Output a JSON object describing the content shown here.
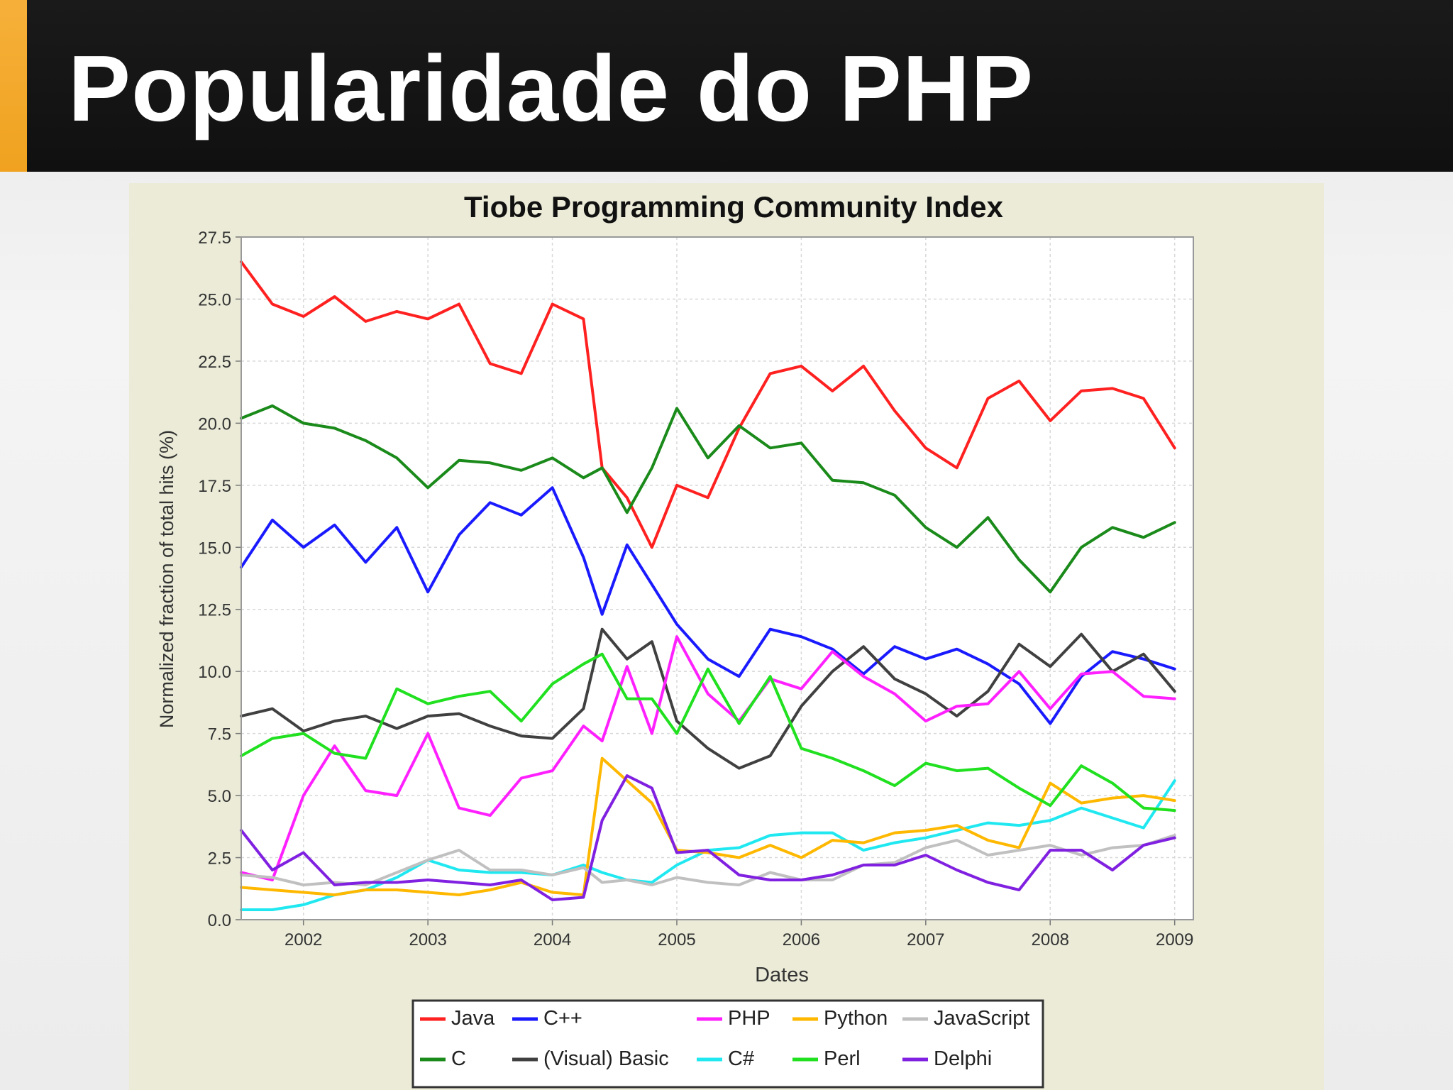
{
  "slide": {
    "title": "Popularidade do PHP"
  },
  "colors": {
    "header_bg": "#121212",
    "accent": "#f2a52a",
    "chart_bg": "#ebebd8",
    "plot_bg": "#ffffff"
  },
  "chart_data": {
    "type": "line",
    "title": "Tiobe Programming Community Index",
    "xlabel": "Dates",
    "ylabel": "Normalized fraction of total hits (%)",
    "xlim": [
      2001.5,
      2009.15
    ],
    "ylim": [
      0,
      27.5
    ],
    "x_ticks": [
      "2002",
      "2003",
      "2004",
      "2005",
      "2006",
      "2007",
      "2008",
      "2009"
    ],
    "y_ticks": [
      "0.0",
      "2.5",
      "5.0",
      "7.5",
      "10.0",
      "12.5",
      "15.0",
      "17.5",
      "20.0",
      "22.5",
      "25.0",
      "27.5"
    ],
    "grid": true,
    "legend_position": "bottom",
    "x": [
      2001.5,
      2001.75,
      2002.0,
      2002.25,
      2002.5,
      2002.75,
      2003.0,
      2003.25,
      2003.5,
      2003.75,
      2004.0,
      2004.25,
      2004.4,
      2004.6,
      2004.8,
      2005.0,
      2005.25,
      2005.5,
      2005.75,
      2006.0,
      2006.25,
      2006.5,
      2006.75,
      2007.0,
      2007.25,
      2007.5,
      2007.75,
      2008.0,
      2008.25,
      2008.5,
      2008.75,
      2009.0
    ],
    "series": [
      {
        "name": "Java",
        "color": "#ff2020",
        "values": [
          26.5,
          24.8,
          24.3,
          25.1,
          24.1,
          24.5,
          24.2,
          24.8,
          22.4,
          22.0,
          24.8,
          24.2,
          18.2,
          17.0,
          15.0,
          17.5,
          17.0,
          19.8,
          22.0,
          22.3,
          21.3,
          22.3,
          20.5,
          19.0,
          18.2,
          21.0,
          21.7,
          20.1,
          21.3,
          21.4,
          21.0,
          19.0
        ]
      },
      {
        "name": "C",
        "color": "#1a8a1a",
        "values": [
          20.2,
          20.7,
          20.0,
          19.8,
          19.3,
          18.6,
          17.4,
          18.5,
          18.4,
          18.1,
          18.6,
          17.8,
          18.2,
          16.4,
          18.2,
          20.6,
          18.6,
          19.9,
          19.0,
          19.2,
          17.7,
          17.6,
          17.1,
          15.8,
          15.0,
          16.2,
          14.5,
          13.2,
          15.0,
          15.8,
          15.4,
          16.0
        ]
      },
      {
        "name": "C++",
        "color": "#1a1aff",
        "values": [
          14.2,
          16.1,
          15.0,
          15.9,
          14.4,
          15.8,
          13.2,
          15.5,
          16.8,
          16.3,
          17.4,
          14.6,
          12.3,
          15.1,
          13.5,
          11.9,
          10.5,
          9.8,
          11.7,
          11.4,
          10.9,
          9.9,
          11.0,
          10.5,
          10.9,
          10.3,
          9.5,
          7.9,
          9.8,
          10.8,
          10.5,
          10.1
        ]
      },
      {
        "name": "(Visual) Basic",
        "color": "#404040",
        "values": [
          8.2,
          8.5,
          7.6,
          8.0,
          8.2,
          7.7,
          8.2,
          8.3,
          7.8,
          7.4,
          7.3,
          8.5,
          11.7,
          10.5,
          11.2,
          8.0,
          6.9,
          6.1,
          6.6,
          8.6,
          10.0,
          11.0,
          9.7,
          9.1,
          8.2,
          9.2,
          11.1,
          10.2,
          11.5,
          10.0,
          10.7,
          9.2
        ]
      },
      {
        "name": "PHP",
        "color": "#ff20ff",
        "values": [
          1.9,
          1.6,
          5.0,
          7.0,
          5.2,
          5.0,
          7.5,
          4.5,
          4.2,
          5.7,
          6.0,
          7.8,
          7.2,
          10.2,
          7.5,
          11.4,
          9.1,
          8.0,
          9.7,
          9.3,
          10.8,
          9.8,
          9.1,
          8.0,
          8.6,
          8.7,
          10.0,
          8.5,
          9.9,
          10.0,
          9.0,
          8.9
        ]
      },
      {
        "name": "C#",
        "color": "#20e8f0",
        "values": [
          0.4,
          0.4,
          0.6,
          1.0,
          1.2,
          1.7,
          2.4,
          2.0,
          1.9,
          1.9,
          1.8,
          2.2,
          1.9,
          1.6,
          1.5,
          2.2,
          2.8,
          2.9,
          3.4,
          3.5,
          3.5,
          2.8,
          3.1,
          3.3,
          3.6,
          3.9,
          3.8,
          4.0,
          4.5,
          4.1,
          3.7,
          5.6
        ]
      },
      {
        "name": "Python",
        "color": "#ffb800",
        "values": [
          1.3,
          1.2,
          1.1,
          1.0,
          1.2,
          1.2,
          1.1,
          1.0,
          1.2,
          1.5,
          1.1,
          1.0,
          6.5,
          5.6,
          4.7,
          2.8,
          2.7,
          2.5,
          3.0,
          2.5,
          3.2,
          3.1,
          3.5,
          3.6,
          3.8,
          3.2,
          2.9,
          5.5,
          4.7,
          4.9,
          5.0,
          4.8
        ]
      },
      {
        "name": "Perl",
        "color": "#20e020",
        "values": [
          6.6,
          7.3,
          7.5,
          6.7,
          6.5,
          9.3,
          8.7,
          9.0,
          9.2,
          8.0,
          9.5,
          10.3,
          10.7,
          8.9,
          8.9,
          7.5,
          10.1,
          7.9,
          9.8,
          6.9,
          6.5,
          6.0,
          5.4,
          6.3,
          6.0,
          6.1,
          5.3,
          4.6,
          6.2,
          5.5,
          4.5,
          4.4
        ]
      },
      {
        "name": "JavaScript",
        "color": "#c0c0c0",
        "values": [
          1.8,
          1.7,
          1.4,
          1.5,
          1.4,
          1.9,
          2.4,
          2.8,
          2.0,
          2.0,
          1.8,
          2.1,
          1.5,
          1.6,
          1.4,
          1.7,
          1.5,
          1.4,
          1.9,
          1.6,
          1.6,
          2.2,
          2.3,
          2.9,
          3.2,
          2.6,
          2.8,
          3.0,
          2.6,
          2.9,
          3.0,
          3.4
        ]
      },
      {
        "name": "Delphi",
        "color": "#8020e0",
        "values": [
          3.6,
          2.0,
          2.7,
          1.4,
          1.5,
          1.5,
          1.6,
          1.5,
          1.4,
          1.6,
          0.8,
          0.9,
          4.0,
          5.8,
          5.3,
          2.7,
          2.8,
          1.8,
          1.6,
          1.6,
          1.8,
          2.2,
          2.2,
          2.6,
          2.0,
          1.5,
          1.2,
          2.8,
          2.8,
          2.0,
          3.0,
          3.3
        ]
      }
    ]
  }
}
